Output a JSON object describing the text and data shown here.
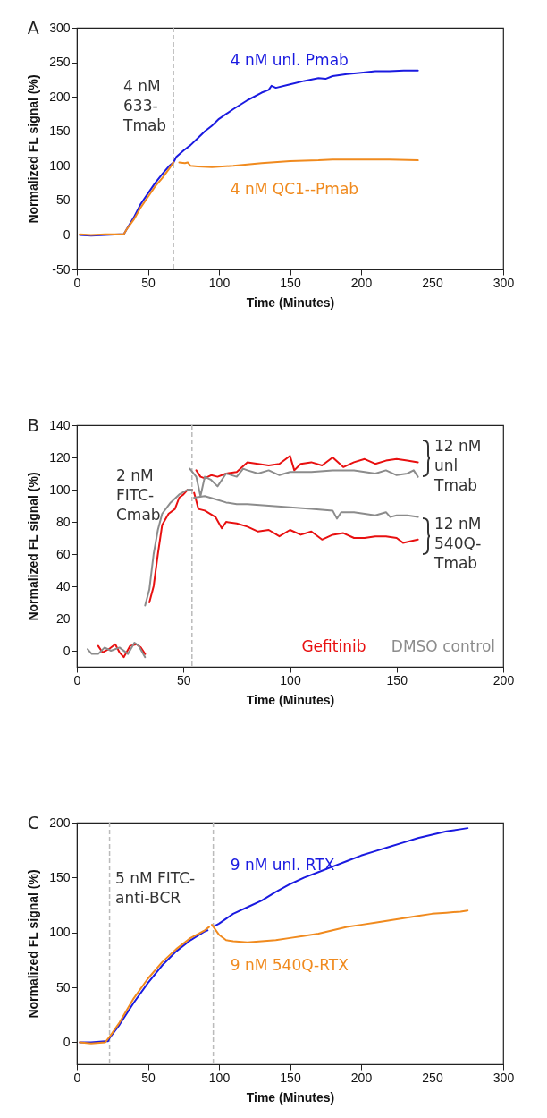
{
  "chart_data": [
    {
      "type": "line",
      "title": "A",
      "xlabel": "Time (Minutes)",
      "ylabel": "Normalized FL signal (%)",
      "xlim": [
        0,
        300
      ],
      "xticks": [
        0,
        50,
        100,
        150,
        200,
        250,
        300
      ],
      "ylim": [
        -50,
        300
      ],
      "yticks": [
        -50,
        0,
        50,
        100,
        150,
        200,
        250,
        300
      ],
      "grid": false,
      "legend": false,
      "series": [
        {
          "name": "4 nM unl. Pmab",
          "color": "#1a1ae0",
          "x": [
            2,
            10,
            20,
            30,
            33,
            35,
            40,
            45,
            50,
            55,
            60,
            65,
            68,
            70,
            75,
            80,
            85,
            90,
            95,
            100,
            105,
            110,
            120,
            130,
            135,
            137,
            140,
            150,
            160,
            170,
            175,
            180,
            190,
            200,
            210,
            220,
            230,
            240
          ],
          "values": [
            0,
            -1,
            0,
            1,
            1,
            8,
            25,
            45,
            60,
            75,
            88,
            100,
            105,
            113,
            122,
            130,
            140,
            150,
            158,
            168,
            175,
            182,
            195,
            206,
            210,
            216,
            213,
            218,
            223,
            227,
            226,
            230,
            233,
            235,
            237,
            237,
            238,
            238
          ]
        },
        {
          "name": "4 nM QC1--Pmab",
          "color": "#f08a1e",
          "x": [
            2,
            10,
            20,
            30,
            33,
            35,
            40,
            45,
            50,
            55,
            60,
            65,
            68,
            70,
            72,
            76,
            78,
            80,
            85,
            95,
            110,
            120,
            130,
            150,
            170,
            180,
            200,
            220,
            240
          ],
          "values": [
            1,
            0,
            1,
            1,
            1,
            8,
            22,
            40,
            55,
            70,
            82,
            96,
            105,
            null,
            105,
            104,
            105,
            100,
            99,
            98,
            100,
            102,
            104,
            107,
            108,
            109,
            109,
            109,
            108
          ]
        }
      ],
      "ref_lines": [
        {
          "axis": "x",
          "value": 68,
          "color": "#bbbbbb",
          "line_style": "dashed"
        }
      ],
      "annotations": [
        "4 nM\n633-\nTmab"
      ]
    },
    {
      "type": "line",
      "title": "B",
      "xlabel": "Time (Minutes)",
      "ylabel": "Normalized FL signal (%)",
      "xlim": [
        0,
        200
      ],
      "xticks": [
        0,
        50,
        100,
        150,
        200
      ],
      "ylim": [
        -10,
        140
      ],
      "yticks": [
        0,
        20,
        40,
        60,
        80,
        100,
        120,
        140
      ],
      "grid": false,
      "legend": "bottom right",
      "series": [
        {
          "name": "Gefitinib",
          "color": "#e81010",
          "x": [
            10,
            12,
            15,
            18,
            20,
            22,
            25,
            28,
            30,
            32,
            33,
            34,
            36,
            38,
            40,
            43,
            46,
            48,
            50,
            52,
            54,
            55,
            56,
            58,
            60,
            63,
            66,
            70,
            75,
            80,
            85,
            90,
            95,
            100,
            102,
            105,
            110,
            115,
            120,
            125,
            130,
            135,
            140,
            145,
            150,
            155,
            160
          ],
          "values": [
            3,
            -1,
            1,
            4,
            -1,
            -4,
            3,
            4,
            2,
            -2,
            null,
            30,
            40,
            60,
            78,
            85,
            88,
            95,
            97,
            100,
            100,
            null,
            112,
            108,
            107,
            109,
            108,
            110,
            111,
            117,
            116,
            115,
            116,
            121,
            112,
            116,
            117,
            115,
            120,
            114,
            117,
            119,
            116,
            118,
            119,
            118,
            117
          ]
        },
        {
          "color": "#e81010",
          "x": [
            55,
            57,
            60,
            65,
            68,
            70,
            75,
            80,
            85,
            90,
            95,
            100,
            105,
            110,
            115,
            120,
            125,
            130,
            135,
            140,
            145,
            150,
            153,
            160
          ],
          "values": [
            98,
            88,
            87,
            83,
            76,
            80,
            79,
            77,
            74,
            75,
            71,
            75,
            72,
            74,
            69,
            72,
            73,
            70,
            70,
            71,
            71,
            70,
            67,
            69
          ]
        },
        {
          "name": "DMSO control",
          "color": "#8c8c8c",
          "x": [
            5,
            7,
            10,
            13,
            16,
            20,
            24,
            27,
            29,
            32
          ],
          "values": [
            1,
            -2,
            -2,
            2,
            0,
            2,
            -2,
            5,
            3,
            -4
          ]
        },
        {
          "color": "#8c8c8c",
          "x": [
            32,
            34,
            36,
            38,
            40,
            44,
            48,
            52,
            54
          ],
          "values": [
            28,
            38,
            60,
            75,
            85,
            92,
            97,
            100,
            100
          ]
        },
        {
          "color": "#8c8c8c",
          "x": [
            53,
            56,
            58,
            60,
            63,
            66,
            70,
            75,
            78,
            80,
            85,
            90,
            95,
            100,
            110,
            120,
            130,
            140,
            145,
            150,
            155,
            158,
            160
          ],
          "values": [
            113,
            108,
            96,
            108,
            106,
            102,
            110,
            108,
            113,
            112,
            110,
            112,
            109,
            111,
            111,
            112,
            112,
            110,
            112,
            109,
            110,
            112,
            108
          ]
        },
        {
          "color": "#8c8c8c",
          "x": [
            55,
            60,
            65,
            70,
            75,
            80,
            90,
            100,
            110,
            120,
            122,
            124,
            130,
            140,
            145,
            147,
            150,
            155,
            160
          ],
          "values": [
            95,
            96,
            94,
            92,
            91,
            91,
            90,
            89,
            88,
            87,
            82,
            86,
            86,
            84,
            86,
            83,
            84,
            84,
            83
          ]
        }
      ],
      "ref_lines": [
        {
          "axis": "x",
          "value": 54,
          "color": "#bbbbbb",
          "line_style": "dashed"
        }
      ],
      "annotations": [
        "2 nM\nFITC-\nCmab",
        "12 nM\nunl\nTmab",
        "12 nM\n540Q-\nTmab"
      ]
    },
    {
      "type": "line",
      "title": "C",
      "xlabel": "Time (Minutes)",
      "ylabel": "Normalized FL signal (%)",
      "xlim": [
        0,
        300
      ],
      "xticks": [
        0,
        50,
        100,
        150,
        200,
        250,
        300
      ],
      "ylim": [
        -20,
        200
      ],
      "yticks": [
        0,
        50,
        100,
        150,
        200
      ],
      "grid": false,
      "legend": false,
      "series": [
        {
          "name": "9 nM unl. RTX",
          "color": "#1a1ae0",
          "x": [
            2,
            10,
            20,
            22,
            23,
            30,
            40,
            50,
            60,
            70,
            80,
            90,
            92,
            94,
            97,
            100,
            110,
            120,
            130,
            140,
            150,
            160,
            170,
            180,
            190,
            200,
            210,
            220,
            230,
            240,
            250,
            260,
            270,
            275
          ],
          "values": [
            0,
            0,
            1,
            1,
            4,
            16,
            36,
            54,
            70,
            83,
            93,
            101,
            102,
            null,
            106,
            108,
            117,
            123,
            129,
            137,
            144,
            150,
            155,
            160,
            165,
            170,
            174,
            178,
            182,
            186,
            189,
            192,
            194,
            195
          ]
        },
        {
          "name": "9 nM 540Q-RTX",
          "color": "#f08a1e",
          "x": [
            2,
            10,
            20,
            23,
            30,
            40,
            50,
            60,
            70,
            80,
            90,
            93,
            94,
            95,
            100,
            105,
            110,
            120,
            130,
            140,
            150,
            160,
            170,
            180,
            190,
            200,
            210,
            220,
            230,
            240,
            250,
            260,
            270,
            275
          ],
          "values": [
            0,
            -1,
            0,
            5,
            18,
            40,
            58,
            73,
            85,
            95,
            102,
            105,
            null,
            107,
            98,
            93,
            92,
            91,
            92,
            93,
            95,
            97,
            99,
            102,
            105,
            107,
            109,
            111,
            113,
            115,
            117,
            118,
            119,
            120
          ]
        }
      ],
      "ref_lines": [
        {
          "axis": "x",
          "value": 23,
          "color": "#bbbbbb",
          "line_style": "dashed"
        },
        {
          "axis": "x",
          "value": 96,
          "color": "#bbbbbb",
          "line_style": "dashed"
        }
      ],
      "annotations": [
        "5 nM FITC-\nanti-BCR"
      ]
    }
  ]
}
